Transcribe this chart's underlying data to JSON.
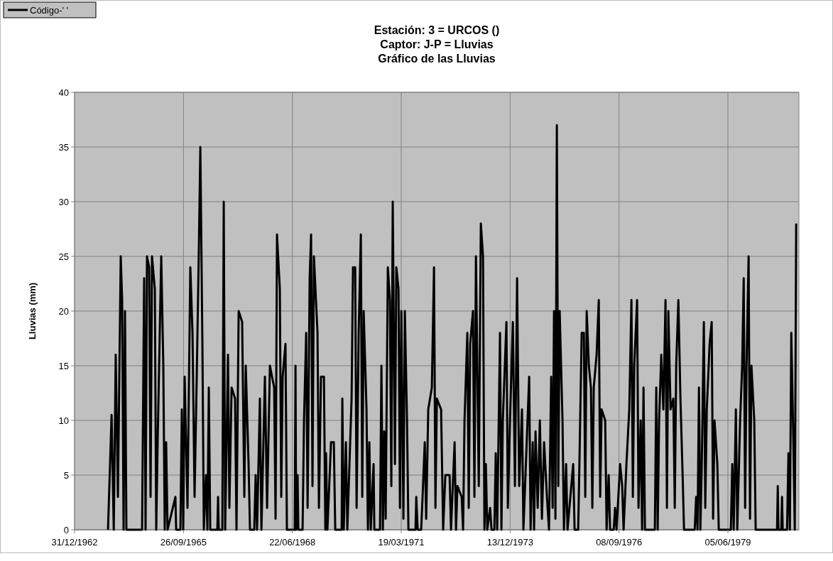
{
  "chart_data": {
    "type": "line",
    "title": "Estación: 3 = URCOS   ()\nCaptor: J-P = Lluvias\nGráfico de las Lluvias",
    "ylabel": "Lluvias (mm)",
    "xlim": [
      "1962-12-31",
      "1981-03-18"
    ],
    "xticks": [
      {
        "value": "1962-12-31",
        "label": "31/12/1962"
      },
      {
        "value": "1965-09-26",
        "label": "26/09/1965"
      },
      {
        "value": "1968-06-22",
        "label": "22/06/1968"
      },
      {
        "value": "1971-03-19",
        "label": "19/03/1971"
      },
      {
        "value": "1973-12-13",
        "label": "13/12/1973"
      },
      {
        "value": "1976-09-08",
        "label": "08/09/1976"
      },
      {
        "value": "1979-06-05",
        "label": "05/06/1979"
      }
    ],
    "ylim": [
      0,
      40
    ],
    "yticks": [
      0,
      5,
      10,
      15,
      20,
      25,
      30,
      35,
      40
    ],
    "grid": true,
    "legend": "top left",
    "marker": "none",
    "line_style": "solid",
    "series": [
      {
        "name": "Código-' '",
        "color": "#000000",
        "x": [
          "1963-11-03",
          "1963-12-06",
          "1963-12-26",
          "1964-01-13",
          "1964-02-02",
          "1964-02-28",
          "1964-03-12",
          "1964-03-25",
          "1964-04-07",
          "1964-04-20",
          "1964-09-11",
          "1964-09-30",
          "1964-10-13",
          "1964-10-26",
          "1964-11-15",
          "1964-11-28",
          "1964-12-11",
          "1965-01-06",
          "1965-01-19",
          "1965-02-01",
          "1965-03-06",
          "1965-03-25",
          "1965-04-07",
          "1965-04-20",
          "1965-05-03",
          "1965-07-14",
          "1965-07-21",
          "1965-08-29",
          "1965-09-11",
          "1965-09-24",
          "1965-10-07",
          "1965-11-02",
          "1965-11-28",
          "1965-12-18",
          "1966-01-06",
          "1966-01-26",
          "1966-02-15",
          "1966-02-28",
          "1966-03-19",
          "1966-04-01",
          "1966-04-21",
          "1966-05-04",
          "1966-05-17",
          "1966-05-30",
          "1966-08-03",
          "1966-08-10",
          "1966-08-16",
          "1966-09-18",
          "1966-10-01",
          "1966-10-14",
          "1966-11-09",
          "1966-11-22",
          "1966-12-12",
          "1967-01-13",
          "1967-01-26",
          "1967-02-15",
          "1967-03-19",
          "1967-04-08",
          "1967-04-21",
          "1967-05-17",
          "1967-05-30",
          "1967-07-08",
          "1967-07-21",
          "1967-08-03",
          "1967-08-29",
          "1967-09-12",
          "1967-10-14",
          "1967-11-03",
          "1967-11-29",
          "1968-01-07",
          "1968-01-20",
          "1968-02-02",
          "1968-02-28",
          "1968-03-12",
          "1968-03-25",
          "1968-04-20",
          "1968-05-03",
          "1968-07-14",
          "1968-07-21",
          "1968-07-27",
          "1968-08-09",
          "1968-08-16",
          "1968-09-24",
          "1968-10-07",
          "1968-10-27",
          "1968-11-09",
          "1968-11-28",
          "1968-12-11",
          "1968-12-24",
          "1969-01-06",
          "1969-02-08",
          "1969-02-21",
          "1969-03-12",
          "1969-04-08",
          "1969-04-21",
          "1969-04-27",
          "1969-05-10",
          "1969-06-12",
          "1969-07-08",
          "1969-07-21",
          "1969-09-18",
          "1969-09-24",
          "1969-10-07",
          "1969-10-27",
          "1969-11-09",
          "1969-12-18",
          "1969-12-31",
          "1970-01-20",
          "1970-02-02",
          "1970-02-21",
          "1970-03-13",
          "1970-03-26",
          "1970-04-08",
          "1970-05-04",
          "1970-05-17",
          "1970-05-30",
          "1970-06-12",
          "1970-07-08",
          "1970-07-15",
          "1970-09-05",
          "1970-09-18",
          "1970-10-01",
          "1970-10-14",
          "1970-10-27",
          "1970-11-16",
          "1970-12-05",
          "1970-12-18",
          "1970-12-31",
          "1971-01-20",
          "1971-02-02",
          "1971-02-22",
          "1971-03-07",
          "1971-03-20",
          "1971-04-08",
          "1971-04-21",
          "1971-05-11",
          "1971-05-24",
          "1971-07-28",
          "1971-08-04",
          "1971-08-17",
          "1971-09-18",
          "1971-10-01",
          "1971-10-21",
          "1971-11-03",
          "1971-11-22",
          "1971-12-25",
          "1972-01-14",
          "1972-01-27",
          "1972-02-09",
          "1972-03-19",
          "1972-04-07",
          "1972-04-27",
          "1972-06-05",
          "1972-06-18",
          "1972-07-21",
          "1972-08-03",
          "1972-08-16",
          "1972-09-24",
          "1972-10-07",
          "1972-10-20",
          "1972-11-15",
          "1972-11-28",
          "1972-12-11",
          "1973-01-06",
          "1973-01-19",
          "1973-02-02",
          "1973-02-28",
          "1973-03-19",
          "1973-04-08",
          "1973-04-21",
          "1973-05-04",
          "1973-05-17",
          "1973-06-12",
          "1973-06-25",
          "1973-07-21",
          "1973-08-03",
          "1973-08-16",
          "1973-09-11",
          "1973-09-24",
          "1973-10-07",
          "1973-11-09",
          "1973-11-22",
          "1973-12-12",
          "1974-01-07",
          "1974-01-26",
          "1974-02-15",
          "1974-03-06",
          "1974-04-01",
          "1974-04-14",
          "1974-06-06",
          "1974-06-19",
          "1974-07-08",
          "1974-07-21",
          "1974-08-03",
          "1974-08-23",
          "1974-09-12",
          "1974-10-01",
          "1974-10-21",
          "1974-11-16",
          "1974-12-05",
          "1974-12-25",
          "1975-01-07",
          "1975-01-20",
          "1975-02-02",
          "1975-02-15",
          "1975-02-28",
          "1975-03-13",
          "1975-04-08",
          "1975-04-21",
          "1975-05-11",
          "1975-05-24",
          "1975-07-15",
          "1975-07-28",
          "1975-08-30",
          "1975-09-12",
          "1975-10-01",
          "1975-10-21",
          "1975-11-03",
          "1975-11-16",
          "1975-12-06",
          "1975-12-25",
          "1976-01-07",
          "1976-01-20",
          "1976-02-15",
          "1976-03-06",
          "1976-03-19",
          "1976-04-01",
          "1976-05-04",
          "1976-05-17",
          "1976-06-05",
          "1976-06-18",
          "1976-07-21",
          "1976-08-03",
          "1976-08-16",
          "1976-09-18",
          "1976-10-07",
          "1976-10-20",
          "1976-11-15",
          "1976-12-11",
          "1976-12-31",
          "1977-01-13",
          "1977-01-26",
          "1977-02-21",
          "1977-03-06",
          "1977-03-26",
          "1977-04-08",
          "1977-04-21",
          "1977-05-04",
          "1977-08-03",
          "1977-08-16",
          "1977-08-29",
          "1977-09-11",
          "1977-10-01",
          "1977-10-20",
          "1977-11-09",
          "1977-11-22",
          "1977-12-05",
          "1977-12-25",
          "1978-01-20",
          "1978-02-02",
          "1978-02-15",
          "1978-03-07",
          "1978-03-26",
          "1978-04-15",
          "1978-04-28",
          "1978-08-04",
          "1978-08-17",
          "1978-08-30",
          "1978-09-12",
          "1978-09-25",
          "1978-10-08",
          "1978-10-27",
          "1978-11-09",
          "1978-11-23",
          "1978-12-19",
          "1979-01-07",
          "1979-01-20",
          "1979-02-02",
          "1979-02-28",
          "1979-03-13",
          "1979-07-02",
          "1979-07-15",
          "1979-07-28",
          "1979-08-17",
          "1979-08-30",
          "1979-09-25",
          "1979-10-14",
          "1979-10-28",
          "1979-11-10",
          "1979-11-23",
          "1979-12-12",
          "1979-12-25",
          "1980-01-07",
          "1980-02-02",
          "1980-02-15",
          "1980-08-29",
          "1980-09-05",
          "1980-09-11",
          "1980-10-07",
          "1980-10-14",
          "1980-10-20",
          "1980-11-29",
          "1980-12-12",
          "1980-12-25",
          "1981-01-07",
          "1981-01-26",
          "1981-02-08",
          "1981-02-21"
        ],
        "values": [
          0,
          10.5,
          0,
          16,
          3,
          25,
          21,
          0,
          20,
          0,
          0,
          23,
          0,
          25,
          24,
          3,
          25,
          22,
          0,
          8,
          25,
          15,
          0,
          8,
          0,
          3,
          0,
          0,
          11,
          0,
          14,
          2,
          24,
          18,
          3,
          14,
          26,
          35,
          17,
          0,
          5,
          0,
          13,
          0,
          0,
          3,
          0,
          0,
          30,
          0,
          16,
          2,
          13,
          12,
          0,
          20,
          19,
          3,
          15,
          6,
          0,
          0,
          5,
          0,
          12,
          0,
          14,
          2,
          15,
          13,
          1,
          27,
          22,
          3,
          14,
          17,
          0,
          0,
          15,
          0,
          5,
          0,
          0,
          10,
          18,
          2,
          23,
          27,
          4,
          25,
          18,
          2,
          14,
          14,
          0,
          7,
          0,
          8,
          8,
          0,
          0,
          12,
          0,
          8,
          0,
          12,
          24,
          24,
          2,
          18,
          27,
          3,
          20,
          11,
          0,
          8,
          0,
          6,
          0,
          0,
          15,
          0,
          9,
          1,
          24,
          21,
          4,
          30,
          6,
          24,
          22,
          2,
          20,
          1,
          20,
          10,
          0,
          0,
          3,
          0,
          0,
          3,
          8,
          1,
          11,
          13,
          24,
          2,
          12,
          11,
          0,
          5,
          5,
          0,
          8,
          0,
          4,
          3,
          0,
          10,
          18,
          2,
          17,
          20,
          3,
          25,
          4,
          28,
          25,
          0,
          6,
          0,
          2,
          0,
          0,
          7,
          0,
          18,
          0,
          10,
          19,
          2,
          10,
          19,
          4,
          23,
          4,
          11,
          0,
          14,
          0,
          8,
          0,
          9,
          2,
          10,
          1,
          8,
          3,
          0,
          14,
          2,
          20,
          1,
          37,
          4,
          20,
          10,
          0,
          6,
          0,
          6,
          0,
          0,
          7,
          18,
          18,
          3,
          20,
          15,
          13,
          2,
          13,
          16,
          21,
          3,
          11,
          10,
          0,
          5,
          0,
          0,
          2,
          0,
          6,
          4,
          0,
          6,
          11,
          21,
          3,
          15,
          21,
          2,
          10,
          0,
          13,
          0,
          0,
          13,
          0,
          10,
          16,
          11,
          21,
          2,
          20,
          11,
          12,
          2,
          15,
          21,
          12,
          5,
          0,
          0,
          3,
          0,
          13,
          0,
          6,
          19,
          2,
          11,
          17,
          19,
          1,
          10,
          6,
          0,
          0,
          6,
          0,
          11,
          0,
          10,
          15,
          23,
          2,
          15,
          25,
          1,
          15,
          10,
          0,
          0,
          4,
          0,
          0,
          3,
          0,
          0,
          7,
          0,
          18,
          8,
          0,
          28
        ]
      }
    ]
  }
}
